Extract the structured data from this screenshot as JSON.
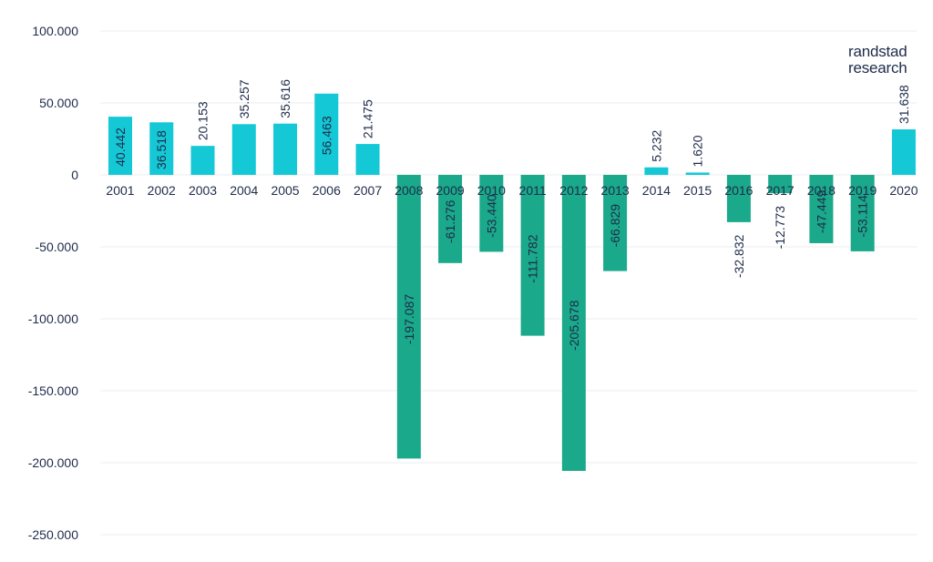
{
  "brand": {
    "line1": "randstad",
    "line2": "research"
  },
  "colors": {
    "positive": "#14c8d6",
    "negative": "#1aa98a",
    "grid": "#e9ecef",
    "text": "#1e2b4a"
  },
  "chart_data": {
    "type": "bar",
    "title": "",
    "xlabel": "",
    "ylabel": "",
    "ylim": [
      -250000,
      100000
    ],
    "yticks": [
      100000,
      50000,
      0,
      -50000,
      -100000,
      -150000,
      -200000,
      -250000
    ],
    "ytick_labels": [
      "100.000",
      "50.000",
      "0",
      "-50.000",
      "-100.000",
      "-150.000",
      "-200.000",
      "-250.000"
    ],
    "grid": true,
    "categories": [
      "2001",
      "2002",
      "2003",
      "2004",
      "2005",
      "2006",
      "2007",
      "2008",
      "2009",
      "2010",
      "2011",
      "2012",
      "2013",
      "2014",
      "2015",
      "2016",
      "2017",
      "2018",
      "2019",
      "2020"
    ],
    "values": [
      40442,
      36518,
      20153,
      35257,
      35616,
      56463,
      21475,
      -197087,
      -61276,
      -53440,
      -111782,
      -205678,
      -66829,
      5232,
      1620,
      -32832,
      -12773,
      -47449,
      -53114,
      31638
    ],
    "data_labels": [
      "40.442",
      "36.518",
      "20.153",
      "35.257",
      "35.616",
      "56.463",
      "21.475",
      "-197.087",
      "-61.276",
      "-53.440",
      "-111.782",
      "-205.678",
      "-66.829",
      "5.232",
      "1.620",
      "-32.832",
      "-12.773",
      "-47.449",
      "-53.114",
      "31.638"
    ]
  }
}
